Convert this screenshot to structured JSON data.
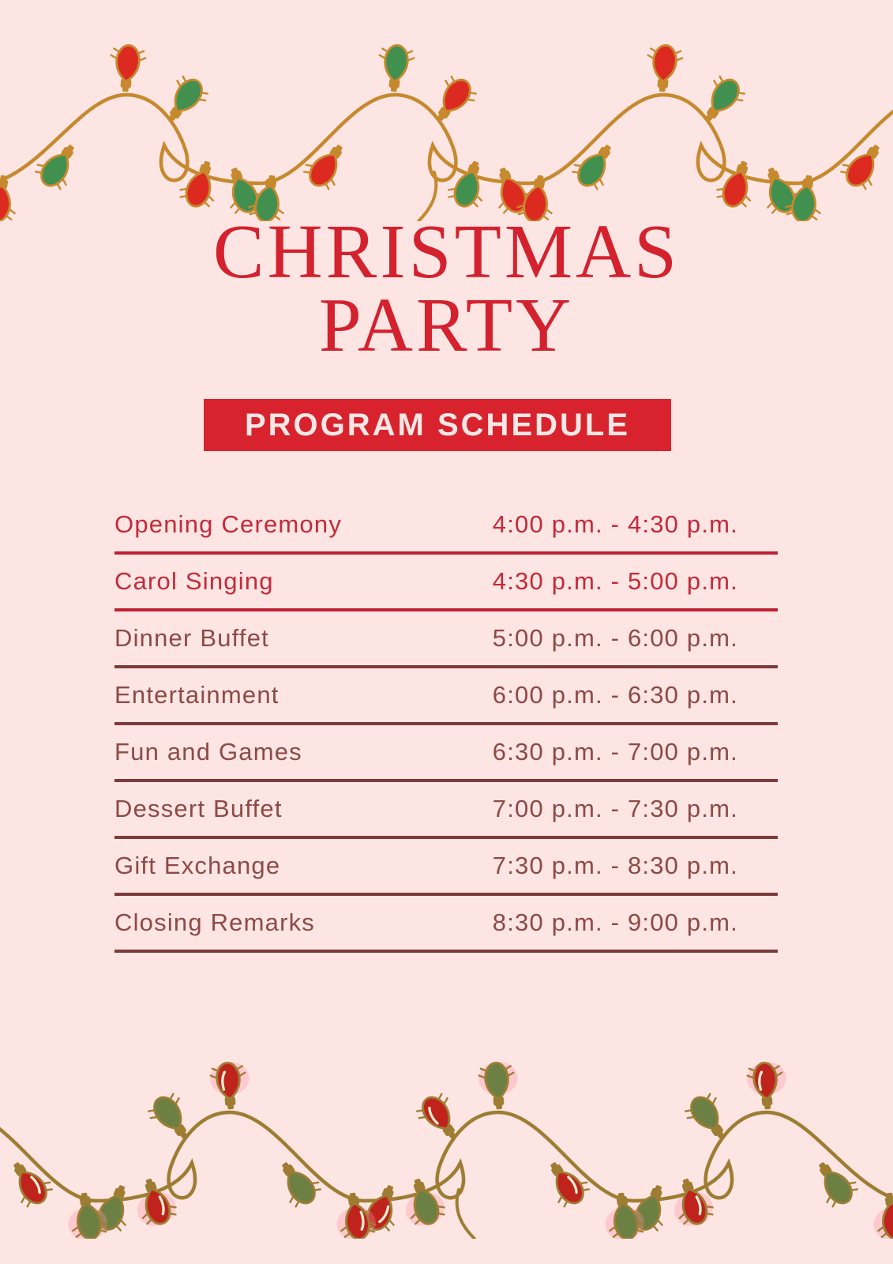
{
  "page": {
    "background": "#fce5e3"
  },
  "title": {
    "line1": "CHRISTMAS",
    "line2": "PARTY",
    "color": "#d4212e"
  },
  "banner": {
    "label": "PROGRAM SCHEDULE",
    "background": "#d8232e",
    "text_color": "#f8e7e5"
  },
  "schedule": {
    "rows": [
      {
        "activity": "Opening Ceremony",
        "time": "4:00 p.m. - 4:30 p.m.",
        "text_color": "#c42a3a",
        "line_color": "#c02033"
      },
      {
        "activity": "Carol Singing",
        "time": "4:30 p.m. - 5:00 p.m.",
        "text_color": "#c42a3a",
        "line_color": "#c02033"
      },
      {
        "activity": "Dinner Buffet",
        "time": "5:00 p.m. - 6:00 p.m.",
        "text_color": "#8d4a46",
        "line_color": "#7d3b39"
      },
      {
        "activity": "Entertainment",
        "time": "6:00 p.m. - 6:30 p.m.",
        "text_color": "#8d4a46",
        "line_color": "#7d3b39"
      },
      {
        "activity": "Fun and Games",
        "time": "6:30 p.m. - 7:00 p.m.",
        "text_color": "#8d4a46",
        "line_color": "#7d3b39"
      },
      {
        "activity": "Dessert Buffet",
        "time": "7:00 p.m. - 7:30 p.m.",
        "text_color": "#8d4a46",
        "line_color": "#7d3b39"
      },
      {
        "activity": "Gift Exchange",
        "time": "7:30 p.m. - 8:30 p.m.",
        "text_color": "#8d4a46",
        "line_color": "#7d3b39"
      },
      {
        "activity": "Closing Remarks",
        "time": "8:30 p.m. - 9:00 p.m.",
        "text_color": "#8d4a46",
        "line_color": "#7d3b39"
      }
    ]
  },
  "decorations": {
    "top_lights": {
      "name": "string-lights-icon",
      "wire": "#c7892e",
      "red": "#dc2a20",
      "green": "#41904f"
    },
    "bottom_lights": {
      "name": "string-lights-icon",
      "wire": "#9e7d33",
      "red": "#bf231c",
      "green": "#6d8044",
      "glow": "#ff8fa3",
      "highlight": "#e9eccd"
    }
  }
}
